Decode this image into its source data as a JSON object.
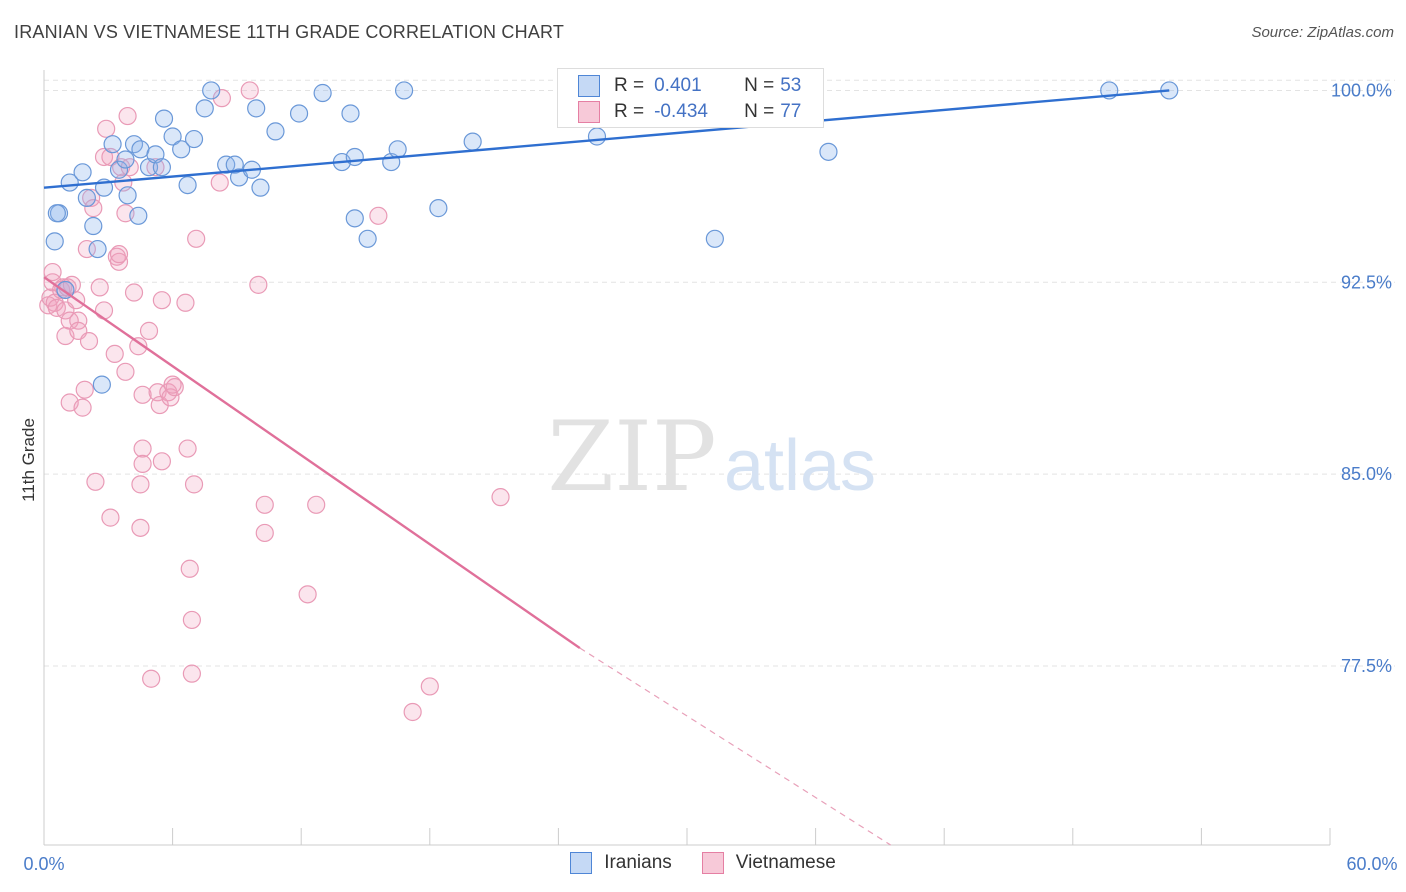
{
  "header": {
    "title": "IRANIAN VS VIETNAMESE 11TH GRADE CORRELATION CHART",
    "source": "Source: ZipAtlas.com"
  },
  "watermark": {
    "zip": "ZIP",
    "atlas": "atlas"
  },
  "legend": {
    "rows": [
      {
        "r_label": "R =",
        "r_value": "0.401",
        "n_label": "N =",
        "n_value": "53"
      },
      {
        "r_label": "R =",
        "r_value": "-0.434",
        "n_label": "N =",
        "n_value": "77"
      }
    ]
  },
  "bottom_legend": {
    "series1": "Iranians",
    "series2": "Vietnamese"
  },
  "chart_data": {
    "type": "scatter",
    "xlabel": "",
    "ylabel": "11th Grade",
    "xlim": [
      0,
      60
    ],
    "ylim": [
      70.5,
      100.8
    ],
    "x_tick_labels": [
      "0.0%",
      "60.0%"
    ],
    "y_ticks": [
      77.5,
      85.0,
      92.5,
      100.0
    ],
    "y_tick_labels": [
      "77.5%",
      "85.0%",
      "92.5%",
      "100.0%"
    ],
    "grid": "horizontal dashed",
    "colors": {
      "iranians": "#4f86d6",
      "vietnamese": "#e57fa3"
    },
    "series": [
      {
        "name": "Iranians",
        "trend": {
          "x": [
            0,
            52.5
          ],
          "y": [
            96.2,
            100.0
          ]
        },
        "points": [
          [
            0.5,
            94.1
          ],
          [
            0.7,
            95.2
          ],
          [
            1.2,
            96.4
          ],
          [
            1.8,
            96.8
          ],
          [
            2.0,
            95.8
          ],
          [
            2.3,
            94.7
          ],
          [
            2.5,
            93.8
          ],
          [
            2.7,
            88.5
          ],
          [
            2.8,
            96.2
          ],
          [
            3.2,
            97.9
          ],
          [
            3.5,
            96.9
          ],
          [
            3.8,
            97.3
          ],
          [
            3.9,
            95.9
          ],
          [
            4.2,
            97.9
          ],
          [
            4.5,
            97.7
          ],
          [
            4.4,
            95.1
          ],
          [
            4.9,
            97.0
          ],
          [
            5.2,
            97.5
          ],
          [
            5.5,
            97.0
          ],
          [
            5.6,
            98.9
          ],
          [
            6.0,
            98.2
          ],
          [
            6.4,
            97.7
          ],
          [
            6.7,
            96.3
          ],
          [
            7.0,
            98.1
          ],
          [
            7.5,
            99.3
          ],
          [
            7.8,
            100.0
          ],
          [
            8.5,
            97.1
          ],
          [
            8.9,
            97.1
          ],
          [
            9.1,
            96.6
          ],
          [
            9.7,
            96.9
          ],
          [
            9.9,
            99.3
          ],
          [
            10.1,
            96.2
          ],
          [
            10.8,
            98.4
          ],
          [
            11.9,
            99.1
          ],
          [
            13.0,
            99.9
          ],
          [
            13.9,
            97.2
          ],
          [
            14.3,
            99.1
          ],
          [
            14.5,
            97.4
          ],
          [
            14.5,
            95.0
          ],
          [
            15.1,
            94.2
          ],
          [
            16.2,
            97.2
          ],
          [
            16.5,
            97.7
          ],
          [
            16.8,
            100.0
          ],
          [
            18.4,
            95.4
          ],
          [
            20.0,
            98.0
          ],
          [
            25.8,
            98.2
          ],
          [
            31.3,
            94.2
          ],
          [
            35.7,
            100.0
          ],
          [
            36.6,
            97.6
          ],
          [
            49.7,
            100.0
          ],
          [
            52.5,
            100.0
          ],
          [
            0.6,
            95.2
          ],
          [
            1.0,
            92.2
          ]
        ]
      },
      {
        "name": "Vietnamese",
        "trend": {
          "x": [
            0,
            25.0
          ],
          "y": [
            92.7,
            78.2
          ],
          "dash_to": [
            39.5,
            70.5
          ]
        },
        "points": [
          [
            0.2,
            91.6
          ],
          [
            0.3,
            91.9
          ],
          [
            0.4,
            92.5
          ],
          [
            0.4,
            92.9
          ],
          [
            0.5,
            91.7
          ],
          [
            0.6,
            91.5
          ],
          [
            0.8,
            92.2
          ],
          [
            0.9,
            92.3
          ],
          [
            1.0,
            91.4
          ],
          [
            1.0,
            90.4
          ],
          [
            1.1,
            92.3
          ],
          [
            1.2,
            91.0
          ],
          [
            1.2,
            87.8
          ],
          [
            1.3,
            92.4
          ],
          [
            1.5,
            91.8
          ],
          [
            1.6,
            91.0
          ],
          [
            1.6,
            90.6
          ],
          [
            1.8,
            87.6
          ],
          [
            1.9,
            88.3
          ],
          [
            2.0,
            93.8
          ],
          [
            2.1,
            90.2
          ],
          [
            2.2,
            95.8
          ],
          [
            2.3,
            95.4
          ],
          [
            2.4,
            84.7
          ],
          [
            2.6,
            92.3
          ],
          [
            2.8,
            91.4
          ],
          [
            2.8,
            97.4
          ],
          [
            2.9,
            98.5
          ],
          [
            3.1,
            97.4
          ],
          [
            3.1,
            83.3
          ],
          [
            3.3,
            89.7
          ],
          [
            3.4,
            93.5
          ],
          [
            3.5,
            93.3
          ],
          [
            3.5,
            93.6
          ],
          [
            3.6,
            97.0
          ],
          [
            3.7,
            96.4
          ],
          [
            3.8,
            89.0
          ],
          [
            3.8,
            95.2
          ],
          [
            3.9,
            99.0
          ],
          [
            4.0,
            97.0
          ],
          [
            4.2,
            92.1
          ],
          [
            4.4,
            90.0
          ],
          [
            4.5,
            82.9
          ],
          [
            4.5,
            84.6
          ],
          [
            4.6,
            88.1
          ],
          [
            4.6,
            86.0
          ],
          [
            4.6,
            85.4
          ],
          [
            4.9,
            90.6
          ],
          [
            5.0,
            77.0
          ],
          [
            5.2,
            97.0
          ],
          [
            5.3,
            88.2
          ],
          [
            5.4,
            87.7
          ],
          [
            5.5,
            85.5
          ],
          [
            5.5,
            91.8
          ],
          [
            5.8,
            88.2
          ],
          [
            5.9,
            88.0
          ],
          [
            6.1,
            88.4
          ],
          [
            6.0,
            88.5
          ],
          [
            6.6,
            91.7
          ],
          [
            6.7,
            86.0
          ],
          [
            6.8,
            81.3
          ],
          [
            6.9,
            79.3
          ],
          [
            6.9,
            77.2
          ],
          [
            7.0,
            84.6
          ],
          [
            7.1,
            94.2
          ],
          [
            8.2,
            96.4
          ],
          [
            8.3,
            99.7
          ],
          [
            9.6,
            100.0
          ],
          [
            10.0,
            92.4
          ],
          [
            10.3,
            83.8
          ],
          [
            10.3,
            82.7
          ],
          [
            12.3,
            80.3
          ],
          [
            12.7,
            83.8
          ],
          [
            15.6,
            95.1
          ],
          [
            17.2,
            75.7
          ],
          [
            18.0,
            76.7
          ],
          [
            21.3,
            84.1
          ]
        ]
      }
    ]
  }
}
